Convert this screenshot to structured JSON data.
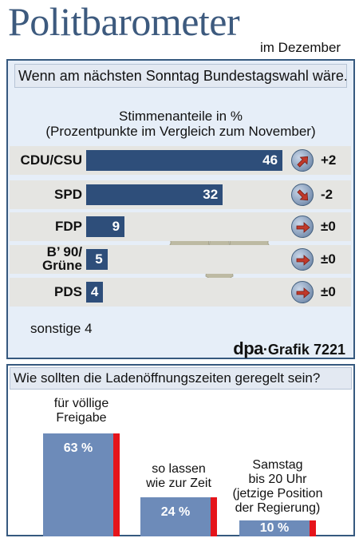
{
  "header": {
    "title": "Politbarometer",
    "subtitle": "im Dezember"
  },
  "chart_data": [
    {
      "type": "bar",
      "question": "Wenn am nächsten Sonntag Bundestagswahl wäre...",
      "title": "Stimmenanteile in %",
      "subtitle": "(Prozentpunkte im Vergleich zum November)",
      "categories": [
        "CDU/CSU",
        "SPD",
        "FDP",
        "B’ 90/ Grüne",
        "PDS"
      ],
      "label_lines": [
        [
          "CDU/CSU"
        ],
        [
          "SPD"
        ],
        [
          "FDP"
        ],
        [
          "B’ 90/",
          "Grüne"
        ],
        [
          "PDS"
        ]
      ],
      "values": [
        46,
        32,
        9,
        5,
        4
      ],
      "changes": [
        "+2",
        "-2",
        "±0",
        "±0",
        "±0"
      ],
      "trend_icons": [
        "arrow-up-right-icon",
        "arrow-down-right-icon",
        "arrow-right-icon",
        "arrow-right-icon",
        "arrow-right-icon"
      ],
      "others_label": "sonstige",
      "others_value": 4,
      "colors": {
        "bar": "#2e4e7a",
        "row_bg": "#e5e5e2",
        "arrow": "#c0392b"
      }
    },
    {
      "type": "bar",
      "question": "Wie sollten die Ladenöffnungszeiten geregelt sein?",
      "categories": [
        [
          "für völlige",
          "Freigabe"
        ],
        [
          "so lassen",
          "wie zur Zeit"
        ],
        [
          "Samstag",
          "bis 20 Uhr",
          "(jetzige Position",
          "der Regierung)"
        ]
      ],
      "values": [
        63,
        24,
        10
      ],
      "value_labels": [
        "63 %",
        "24 %",
        "10 %"
      ],
      "ylim": [
        0,
        100
      ],
      "colors": {
        "bar": "#6d8bb9",
        "accent": "#e5141b"
      }
    }
  ],
  "source": {
    "agency": "dpa",
    "separator": "·",
    "graphic": "Grafik 7221"
  }
}
